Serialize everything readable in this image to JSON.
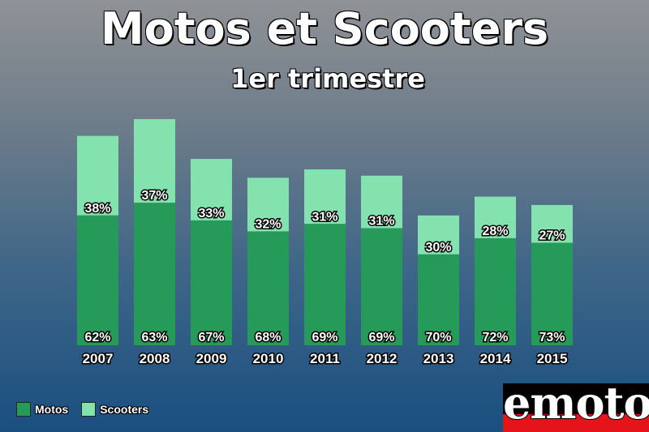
{
  "title": "Motos et Scooters",
  "subtitle": "1er trimestre",
  "colors": {
    "motos": "#259a59",
    "scooters": "#84e2af"
  },
  "legend": {
    "motos": "Motos",
    "scooters": "Scooters"
  },
  "logo": "emoto",
  "chart_data": {
    "type": "bar",
    "stacked": true,
    "title": "Motos et Scooters",
    "subtitle": "1er trimestre",
    "categories": [
      "2007",
      "2008",
      "2009",
      "2010",
      "2011",
      "2012",
      "2013",
      "2014",
      "2015"
    ],
    "relative_totals": [
      100,
      108,
      89,
      80,
      84,
      81,
      62,
      71,
      67
    ],
    "series": [
      {
        "name": "Motos",
        "values": [
          62,
          63,
          67,
          68,
          69,
          69,
          70,
          72,
          73
        ],
        "labels": [
          "62%",
          "63%",
          "67%",
          "68%",
          "69%",
          "69%",
          "70%",
          "72%",
          "73%"
        ]
      },
      {
        "name": "Scooters",
        "values": [
          38,
          37,
          33,
          32,
          31,
          31,
          30,
          28,
          27
        ],
        "labels": [
          "38%",
          "37%",
          "33%",
          "32%",
          "31%",
          "31%",
          "30%",
          "28%",
          "27%"
        ]
      }
    ],
    "legend_position": "bottom-left",
    "grid": false
  }
}
